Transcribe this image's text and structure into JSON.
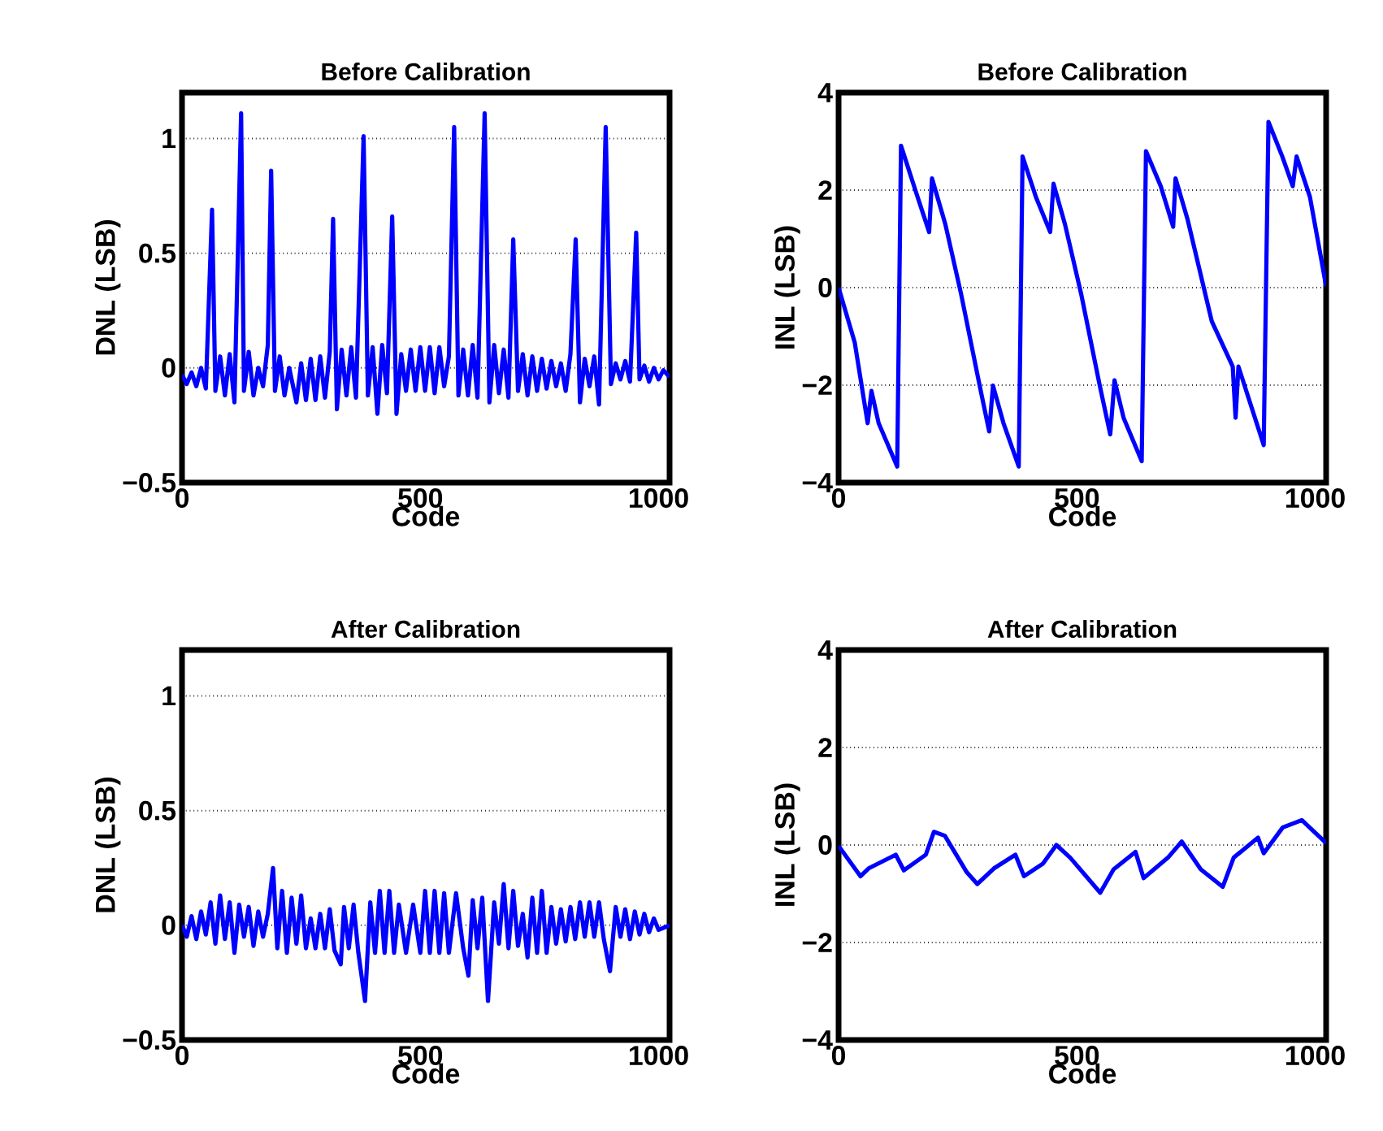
{
  "chart_data": [
    {
      "type": "line",
      "title": "Before Calibration",
      "xlabel": "Code",
      "ylabel": "DNL (LSB)",
      "color": "#0000ff",
      "xlim": [
        0,
        1023
      ],
      "xticks": [
        0,
        500,
        1000
      ],
      "ylim": [
        -0.5,
        1.2
      ],
      "yticks": [
        {
          "value": -0.5,
          "label": "−0.5"
        },
        0,
        0.5,
        1
      ],
      "grid": "y",
      "x": [
        0,
        10,
        20,
        30,
        40,
        50,
        63,
        70,
        80,
        90,
        100,
        110,
        124,
        130,
        140,
        150,
        160,
        170,
        180,
        187,
        195,
        205,
        215,
        225,
        240,
        250,
        260,
        270,
        280,
        290,
        300,
        310,
        317,
        325,
        335,
        345,
        355,
        365,
        381,
        390,
        400,
        410,
        420,
        430,
        441,
        450,
        460,
        470,
        480,
        490,
        500,
        510,
        520,
        530,
        540,
        550,
        560,
        571,
        580,
        590,
        600,
        610,
        620,
        635,
        645,
        655,
        665,
        675,
        685,
        695,
        705,
        715,
        725,
        735,
        745,
        755,
        765,
        775,
        785,
        795,
        805,
        815,
        826,
        835,
        845,
        855,
        865,
        875,
        889,
        900,
        910,
        920,
        930,
        940,
        953,
        960,
        970,
        980,
        990,
        1000,
        1010,
        1023
      ],
      "values": [
        -0.03,
        -0.07,
        -0.02,
        -0.08,
        0.0,
        -0.09,
        0.69,
        -0.1,
        0.05,
        -0.12,
        0.06,
        -0.15,
        1.11,
        -0.1,
        0.07,
        -0.12,
        0.0,
        -0.08,
        0.1,
        0.86,
        -0.1,
        0.05,
        -0.12,
        0.0,
        -0.15,
        0.02,
        -0.14,
        0.04,
        -0.14,
        0.05,
        -0.13,
        0.07,
        0.65,
        -0.18,
        0.08,
        -0.12,
        0.09,
        -0.13,
        1.01,
        -0.12,
        0.09,
        -0.2,
        0.1,
        -0.11,
        0.66,
        -0.2,
        0.06,
        -0.1,
        0.08,
        -0.1,
        0.09,
        -0.1,
        0.09,
        -0.11,
        0.09,
        -0.08,
        0.05,
        1.05,
        -0.12,
        0.08,
        -0.12,
        0.1,
        -0.13,
        1.11,
        -0.15,
        0.1,
        -0.11,
        0.08,
        -0.13,
        0.56,
        -0.1,
        0.06,
        -0.12,
        0.05,
        -0.1,
        0.04,
        -0.09,
        0.03,
        -0.08,
        0.02,
        -0.1,
        0.06,
        0.56,
        -0.15,
        0.04,
        -0.08,
        0.05,
        -0.16,
        1.05,
        -0.07,
        0.02,
        -0.05,
        0.03,
        -0.06,
        0.59,
        -0.05,
        0.01,
        -0.06,
        0.0,
        -0.05,
        -0.01,
        -0.04
      ]
    },
    {
      "type": "line",
      "title": "Before Calibration",
      "xlabel": "Code",
      "ylabel": "INL (LSB)",
      "color": "#0000ff",
      "xlim": [
        0,
        1023
      ],
      "xticks": [
        0,
        500,
        1000
      ],
      "ylim": [
        -4,
        4
      ],
      "yticks": [
        {
          "value": -4,
          "label": "−4"
        },
        {
          "value": -2,
          "label": "−2"
        },
        0,
        2,
        4
      ],
      "grid": "y",
      "x": [
        0,
        34,
        61,
        69,
        84,
        123,
        131,
        162,
        190,
        196,
        224,
        257,
        296,
        316,
        324,
        346,
        378,
        386,
        414,
        444,
        451,
        475,
        509,
        548,
        570,
        579,
        598,
        636,
        645,
        676,
        702,
        707,
        732,
        783,
        827,
        833,
        839,
        892,
        902,
        931,
        953,
        961,
        989,
        1023
      ],
      "values": [
        0,
        -1.13,
        -2.78,
        -2.12,
        -2.78,
        -3.67,
        2.91,
        1.97,
        1.14,
        2.24,
        1.3,
        -0.13,
        -2.01,
        -2.95,
        -2.01,
        -2.78,
        -3.67,
        2.69,
        1.86,
        1.14,
        2.13,
        1.3,
        -0.13,
        -2.01,
        -3.01,
        -1.9,
        -2.67,
        -3.56,
        2.8,
        2.08,
        1.25,
        2.24,
        1.41,
        -0.69,
        -1.62,
        -2.67,
        -1.62,
        -3.23,
        3.4,
        2.69,
        2.08,
        2.69,
        1.86,
        0.03
      ]
    },
    {
      "type": "line",
      "title": "After Calibration",
      "xlabel": "Code",
      "ylabel": "DNL (LSB)",
      "color": "#0000ff",
      "xlim": [
        0,
        1023
      ],
      "xticks": [
        0,
        500,
        1000
      ],
      "ylim": [
        -0.5,
        1.2
      ],
      "yticks": [
        {
          "value": -0.5,
          "label": "−0.5"
        },
        0,
        0.5,
        1
      ],
      "grid": "y",
      "x": [
        0,
        10,
        20,
        30,
        40,
        50,
        60,
        70,
        80,
        90,
        100,
        110,
        120,
        130,
        140,
        150,
        160,
        170,
        180,
        191,
        200,
        210,
        220,
        230,
        240,
        250,
        260,
        270,
        280,
        290,
        300,
        310,
        320,
        333,
        340,
        350,
        360,
        370,
        384,
        395,
        405,
        415,
        425,
        435,
        445,
        455,
        470,
        485,
        500,
        510,
        520,
        530,
        540,
        550,
        560,
        575,
        590,
        601,
        610,
        620,
        630,
        642,
        655,
        665,
        675,
        685,
        695,
        705,
        715,
        725,
        735,
        745,
        755,
        765,
        775,
        785,
        795,
        805,
        815,
        825,
        835,
        845,
        855,
        865,
        875,
        885,
        898,
        910,
        920,
        930,
        940,
        950,
        960,
        970,
        980,
        990,
        1000,
        1023
      ],
      "values": [
        0.0,
        -0.05,
        0.04,
        -0.06,
        0.06,
        -0.04,
        0.1,
        -0.08,
        0.13,
        -0.06,
        0.1,
        -0.12,
        0.09,
        -0.05,
        0.08,
        -0.09,
        0.06,
        -0.05,
        0.05,
        0.25,
        -0.1,
        0.15,
        -0.12,
        0.12,
        -0.08,
        0.13,
        -0.1,
        0.03,
        -0.1,
        0.05,
        -0.1,
        0.07,
        -0.11,
        -0.17,
        0.08,
        -0.1,
        0.09,
        -0.12,
        -0.33,
        0.1,
        -0.12,
        0.15,
        -0.12,
        0.15,
        -0.12,
        0.09,
        -0.12,
        0.09,
        -0.12,
        0.15,
        -0.12,
        0.15,
        -0.12,
        0.14,
        -0.12,
        0.14,
        -0.1,
        -0.22,
        0.11,
        -0.1,
        0.12,
        -0.33,
        0.1,
        -0.08,
        0.18,
        -0.1,
        0.15,
        -0.09,
        0.05,
        -0.14,
        0.12,
        -0.12,
        0.15,
        -0.12,
        0.08,
        -0.08,
        0.07,
        -0.07,
        0.08,
        -0.06,
        0.1,
        -0.05,
        0.1,
        -0.05,
        0.1,
        -0.06,
        -0.2,
        0.08,
        -0.05,
        0.07,
        -0.06,
        0.06,
        -0.04,
        0.05,
        -0.03,
        0.03,
        -0.02,
        0.0
      ]
    },
    {
      "type": "line",
      "title": "After Calibration",
      "xlabel": "Code",
      "ylabel": "INL (LSB)",
      "color": "#0000ff",
      "xlim": [
        0,
        1023
      ],
      "xticks": [
        0,
        500,
        1000
      ],
      "ylim": [
        -4,
        4
      ],
      "yticks": [
        {
          "value": -4,
          "label": "−4"
        },
        {
          "value": -2,
          "label": "−2"
        },
        0,
        2,
        4
      ],
      "grid": "y",
      "x": [
        0,
        46,
        63,
        120,
        137,
        183,
        200,
        223,
        269,
        291,
        326,
        371,
        389,
        429,
        457,
        486,
        549,
        577,
        623,
        640,
        691,
        720,
        760,
        806,
        829,
        880,
        892,
        932,
        972,
        1023
      ],
      "values": [
        -0.02,
        -0.64,
        -0.48,
        -0.2,
        -0.52,
        -0.2,
        0.27,
        0.19,
        -0.56,
        -0.8,
        -0.48,
        -0.2,
        -0.64,
        -0.38,
        0,
        -0.26,
        -0.98,
        -0.5,
        -0.14,
        -0.68,
        -0.26,
        0.07,
        -0.5,
        -0.86,
        -0.26,
        0.15,
        -0.17,
        0.36,
        0.51,
        0.04
      ]
    }
  ]
}
